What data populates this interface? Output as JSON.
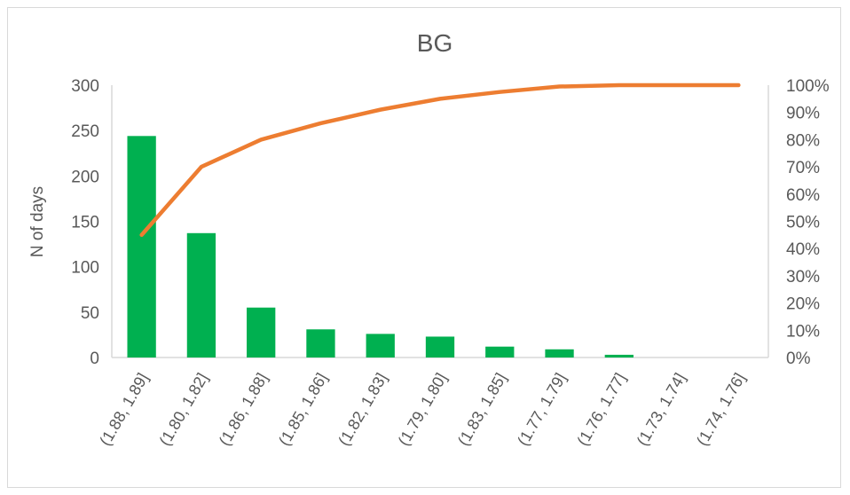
{
  "chart_data": {
    "type": "bar",
    "title": "BG",
    "ylabel": "N of days",
    "ylim": [
      0,
      300
    ],
    "y_ticks": [
      0,
      50,
      100,
      150,
      200,
      250,
      300
    ],
    "y2lim": [
      0,
      100
    ],
    "y2_ticks": [
      "0%",
      "10%",
      "20%",
      "30%",
      "40%",
      "50%",
      "60%",
      "70%",
      "80%",
      "90%",
      "100%"
    ],
    "categories": [
      "(1.88, 1.89]",
      "(1.80, 1.82]",
      "(1.86, 1.88]",
      "(1.85, 1.86]",
      "(1.82, 1.83]",
      "(1.79, 1.80]",
      "(1.83, 1.85]",
      "(1.77, 1.79]",
      "(1.76, 1.77]",
      "(1.73, 1.74]",
      "(1.74, 1.76]"
    ],
    "series": [
      {
        "type": "bar",
        "axis": "left",
        "color": "#00b050",
        "values": [
          244,
          137,
          55,
          31,
          26,
          23,
          12,
          9,
          3,
          0,
          0
        ]
      },
      {
        "type": "line",
        "axis": "right",
        "color": "#ed7d31",
        "values": [
          45,
          70,
          80,
          86,
          91,
          95,
          97.5,
          99.5,
          100,
          100,
          100
        ]
      }
    ],
    "grid": false,
    "legend": "none"
  }
}
